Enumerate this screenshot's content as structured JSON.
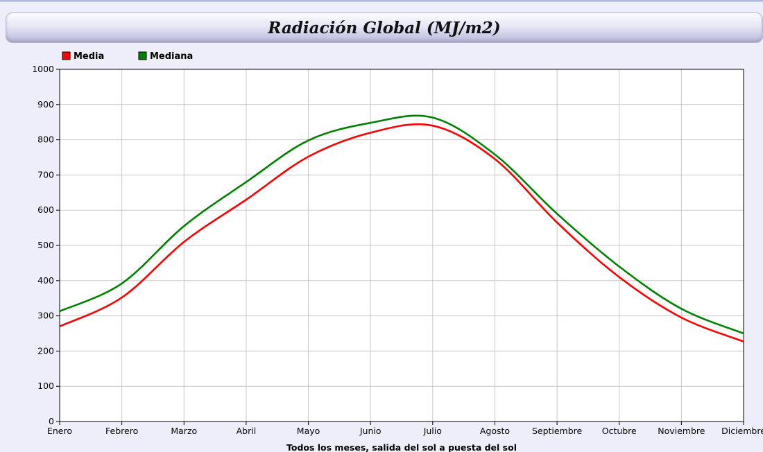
{
  "chart_data": {
    "type": "line",
    "title": "Radiación Global (MJ/m2)",
    "xlabel": "Todos los meses, salida del sol a puesta del sol",
    "ylabel": "",
    "categories": [
      "Enero",
      "Febrero",
      "Marzo",
      "Abril",
      "Mayo",
      "Junio",
      "Julio",
      "Agosto",
      "Septiembre",
      "Octubre",
      "Noviembre",
      "Diciembre"
    ],
    "yticks": [
      "0",
      "100",
      "200",
      "300",
      "400",
      "500",
      "600",
      "700",
      "800",
      "900",
      "1000"
    ],
    "ylim": [
      0,
      1000
    ],
    "grid": true,
    "legend_position": "top-left",
    "series": [
      {
        "name": "Media",
        "color": "#ff0000",
        "values": [
          270,
          352,
          510,
          630,
          752,
          820,
          840,
          745,
          565,
          410,
          295,
          227
        ]
      },
      {
        "name": "Mediana",
        "color": "#008000",
        "values": [
          313,
          392,
          555,
          680,
          798,
          848,
          863,
          758,
          590,
          440,
          320,
          250
        ]
      }
    ]
  }
}
